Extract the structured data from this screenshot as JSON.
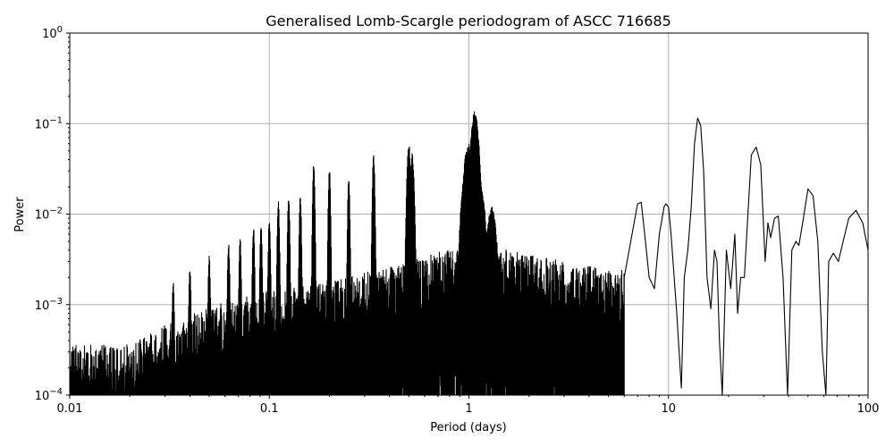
{
  "chart_data": {
    "type": "line",
    "title": "Generalised Lomb-Scargle periodogram of ASCC 716685",
    "xlabel": "Period (days)",
    "ylabel": "Power",
    "xscale": "log",
    "yscale": "log",
    "xlim": [
      0.01,
      100
    ],
    "ylim": [
      0.0001,
      1
    ],
    "grid": true,
    "legend": null,
    "x_ticks": [
      {
        "value": 0.01,
        "label": "0.01"
      },
      {
        "value": 0.1,
        "label": "0.1"
      },
      {
        "value": 1,
        "label": "1"
      },
      {
        "value": 10,
        "label": "10"
      },
      {
        "value": 100,
        "label": "100"
      }
    ],
    "y_ticks": [
      {
        "value": 0.0001,
        "base": "10",
        "exp": "−4"
      },
      {
        "value": 0.001,
        "base": "10",
        "exp": "−3"
      },
      {
        "value": 0.01,
        "base": "10",
        "exp": "−2"
      },
      {
        "value": 0.1,
        "base": "10",
        "exp": "−1"
      },
      {
        "value": 1,
        "base": "10",
        "exp": "0"
      }
    ],
    "line_color": "#000000",
    "grid_color": "#b0b0b0",
    "noise_envelope": {
      "description": "dense aliasing noise floor rising with period, approximate upper envelope",
      "x": [
        0.01,
        0.02,
        0.03,
        0.05,
        0.1,
        0.2,
        0.5,
        1.0,
        2.0,
        5.0
      ],
      "y": [
        0.0003,
        0.0003,
        0.0005,
        0.0008,
        0.0012,
        0.0015,
        0.0025,
        0.004,
        0.003,
        0.002
      ]
    },
    "alias_peaks": [
      {
        "period": 0.033,
        "power": 0.0018
      },
      {
        "period": 0.04,
        "power": 0.0025
      },
      {
        "period": 0.05,
        "power": 0.0035
      },
      {
        "period": 0.0625,
        "power": 0.005
      },
      {
        "period": 0.0714,
        "power": 0.0055
      },
      {
        "period": 0.0833,
        "power": 0.0075
      },
      {
        "period": 0.0909,
        "power": 0.008
      },
      {
        "period": 0.1,
        "power": 0.009
      },
      {
        "period": 0.111,
        "power": 0.0145
      },
      {
        "period": 0.125,
        "power": 0.016
      },
      {
        "period": 0.143,
        "power": 0.016
      },
      {
        "period": 0.167,
        "power": 0.038
      },
      {
        "period": 0.2,
        "power": 0.033
      },
      {
        "period": 0.25,
        "power": 0.025
      },
      {
        "period": 0.333,
        "power": 0.045
      },
      {
        "period": 0.5,
        "power": 0.06
      },
      {
        "period": 0.52,
        "power": 0.047
      },
      {
        "period": 0.95,
        "power": 0.027
      },
      {
        "period": 0.98,
        "power": 0.055
      },
      {
        "period": 1.0,
        "power": 0.06
      },
      {
        "period": 1.07,
        "power": 0.14
      },
      {
        "period": 1.15,
        "power": 0.02
      },
      {
        "period": 1.3,
        "power": 0.012
      }
    ],
    "smooth_segment": {
      "description": "resolved low-frequency structure for periods > ~6 days",
      "x": [
        6.0,
        7.0,
        7.3,
        7.6,
        8.0,
        8.5,
        9.0,
        9.5,
        9.7,
        10.0,
        10.3,
        11.0,
        11.6,
        12.0,
        12.5,
        13.0,
        13.5,
        14.0,
        14.5,
        15.0,
        15.6,
        16.3,
        17.0,
        17.5,
        18.0,
        18.6,
        19.5,
        20.5,
        21.5,
        22.2,
        23.0,
        24.0,
        25.0,
        26.0,
        27.5,
        29.0,
        30.5,
        31.5,
        32.5,
        34.0,
        35.5,
        37.5,
        39.5,
        41.5,
        43.5,
        45.0,
        47.0,
        50.0,
        53.0,
        56.0,
        59.0,
        61.5,
        63.5,
        67.0,
        71.0,
        75.0,
        80.0,
        87.0,
        94.0,
        100.0
      ],
      "y": [
        0.002,
        0.013,
        0.0135,
        0.006,
        0.002,
        0.0015,
        0.006,
        0.012,
        0.013,
        0.012,
        0.006,
        0.0008,
        0.00012,
        0.002,
        0.004,
        0.012,
        0.06,
        0.115,
        0.095,
        0.03,
        0.002,
        0.0009,
        0.004,
        0.003,
        0.0004,
        0.0001,
        0.004,
        0.0015,
        0.006,
        0.0008,
        0.002,
        0.002,
        0.01,
        0.045,
        0.055,
        0.035,
        0.003,
        0.008,
        0.0055,
        0.009,
        0.0095,
        0.002,
        0.0001,
        0.004,
        0.005,
        0.0045,
        0.008,
        0.019,
        0.016,
        0.005,
        0.0003,
        0.0001,
        0.003,
        0.0037,
        0.003,
        0.005,
        0.009,
        0.011,
        0.008,
        0.004
      ]
    }
  }
}
